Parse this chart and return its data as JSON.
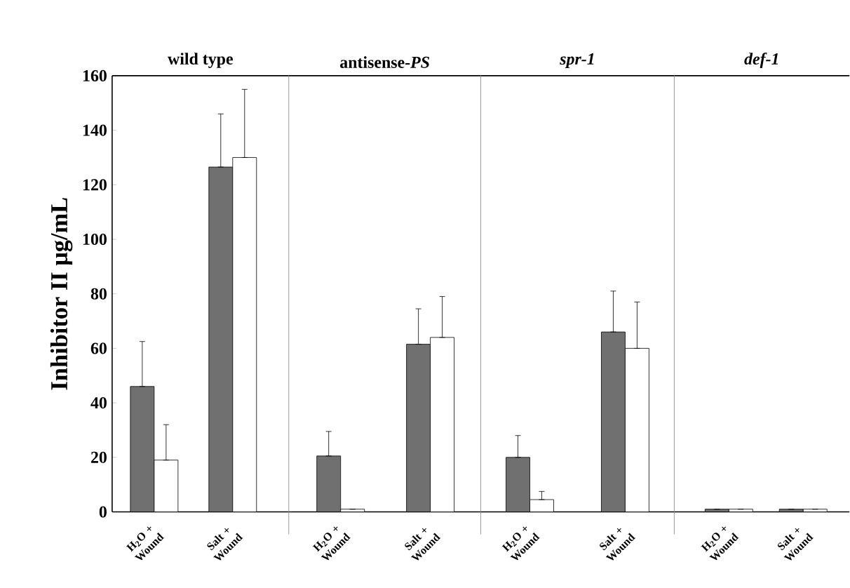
{
  "chart_data": [
    {
      "type": "bar",
      "title": "wild type",
      "ylabel": "Inhibitor II μg/mL",
      "categories": [
        "H$_{2}$O + Wound",
        "Salt + Wound"
      ],
      "ylim": [
        0,
        160
      ],
      "yticks": [
        0,
        20,
        40,
        60,
        80,
        100,
        120,
        140,
        160
      ],
      "series": [
        {
          "color": "#707070",
          "values": [
            46,
            126.5
          ],
          "errors": [
            [
              46,
              62.5
            ],
            [
              126.5,
              146
            ]
          ]
        },
        {
          "color": "#ffffff",
          "values": [
            19,
            130
          ],
          "errors": [
            [
              19,
              32
            ],
            [
              130,
              155
            ]
          ]
        }
      ]
    },
    {
      "type": "bar",
      "title": "antisense-*PS*",
      "categories": [
        "H$_{2}$O + Wound",
        "Salt + Wound"
      ],
      "ylim": [
        0,
        160
      ],
      "tick_labels": "x",
      "series": [
        {
          "color": "#707070",
          "values": [
            20.5,
            61.5
          ],
          "errors": [
            [
              20.5,
              29.5
            ],
            [
              61.5,
              74.5
            ]
          ]
        },
        {
          "color": "#ffffff",
          "values": [
            1,
            64
          ],
          "errors": [
            null,
            [
              64,
              79
            ]
          ]
        }
      ]
    },
    {
      "type": "bar",
      "title": "*spr-1*",
      "categories": [
        "H$_{2}$O + Wound",
        "Salt + Wound"
      ],
      "ylim": [
        0,
        160
      ],
      "tick_labels": "x",
      "series": [
        {
          "color": "#707070",
          "values": [
            20,
            66
          ],
          "errors": [
            [
              20,
              28
            ],
            [
              66,
              81
            ]
          ]
        },
        {
          "color": "#ffffff",
          "values": [
            4.5,
            60
          ],
          "errors": [
            [
              4.5,
              7.5
            ],
            [
              60,
              77
            ]
          ]
        }
      ]
    },
    {
      "type": "bar",
      "title": "*def-1*",
      "categories": [
        "H$_{2}$O + Wound",
        "Salt + Wound"
      ],
      "ylim": [
        0,
        160
      ],
      "tick_labels": "x",
      "series": [
        {
          "color": "#707070",
          "values": [
            1,
            1
          ],
          "errors": [
            null,
            null
          ]
        },
        {
          "color": "#ffffff",
          "values": [
            1,
            1
          ],
          "errors": [
            null,
            null
          ]
        }
      ]
    }
  ]
}
